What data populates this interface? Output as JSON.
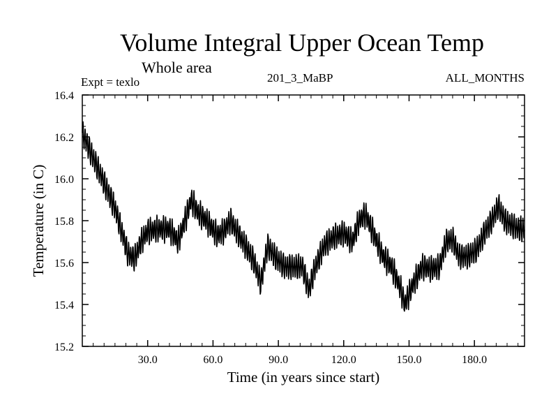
{
  "chart_data": {
    "type": "line",
    "title": "Volume Integral Upper Ocean Temp",
    "subtitle": "Whole area",
    "expt_label": "Expt = texlo",
    "run_label": "201_3_MaBP",
    "months_label": "ALL_MONTHS",
    "xlabel": "Time (in years since start)",
    "ylabel": "Temperature (in C)",
    "xlim": [
      0,
      203
    ],
    "ylim": [
      15.2,
      16.4
    ],
    "x_ticks": [
      30,
      60,
      90,
      120,
      150,
      180
    ],
    "x_tick_labels": [
      "30.0",
      "60.0",
      "90.0",
      "120.0",
      "150.0",
      "180.0"
    ],
    "y_ticks": [
      15.2,
      15.4,
      15.6,
      15.8,
      16.0,
      16.2,
      16.4
    ],
    "y_tick_labels": [
      "15.2",
      "15.4",
      "15.6",
      "15.8",
      "16.0",
      "16.2",
      "16.4"
    ],
    "series": [
      {
        "name": "texlo",
        "seasonal_amplitude": 0.05,
        "x": [
          0,
          5,
          10,
          15,
          18,
          21,
          24,
          27,
          30,
          35,
          40,
          44,
          48,
          50,
          53,
          57,
          62,
          65,
          68,
          72,
          76,
          79,
          82,
          85,
          89,
          93,
          97,
          101,
          104,
          107,
          111,
          115,
          120,
          124,
          127,
          130,
          134,
          138,
          142,
          146,
          148,
          152,
          156,
          160,
          164,
          167,
          170,
          173,
          177,
          181,
          185,
          188,
          191,
          194,
          197,
          200,
          203
        ],
        "y": [
          16.22,
          16.1,
          15.98,
          15.86,
          15.75,
          15.64,
          15.62,
          15.7,
          15.75,
          15.76,
          15.76,
          15.7,
          15.83,
          15.9,
          15.84,
          15.8,
          15.73,
          15.75,
          15.8,
          15.73,
          15.66,
          15.6,
          15.5,
          15.68,
          15.62,
          15.58,
          15.58,
          15.58,
          15.47,
          15.58,
          15.68,
          15.72,
          15.74,
          15.7,
          15.8,
          15.83,
          15.73,
          15.63,
          15.58,
          15.48,
          15.4,
          15.5,
          15.58,
          15.57,
          15.58,
          15.7,
          15.71,
          15.63,
          15.63,
          15.66,
          15.75,
          15.8,
          15.87,
          15.8,
          15.78,
          15.76,
          15.76
        ]
      }
    ]
  }
}
